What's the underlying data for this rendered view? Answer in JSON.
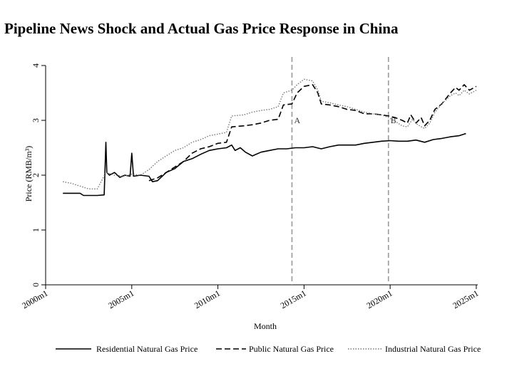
{
  "chart_data": {
    "type": "line",
    "title": "Pipeline News Shock and Actual Gas Price Response in China",
    "xlabel": "Month",
    "ylabel": "Price (RMB/m³)",
    "xlim": [
      2000.0,
      2025.5
    ],
    "ylim": [
      0,
      4
    ],
    "x_ticks": [
      {
        "label": "2000m1",
        "value": 2000
      },
      {
        "label": "2005m1",
        "value": 2005
      },
      {
        "label": "2010m1",
        "value": 2010
      },
      {
        "label": "2015m1",
        "value": 2015
      },
      {
        "label": "2020m1",
        "value": 2020
      },
      {
        "label": "2025m1",
        "value": 2025
      }
    ],
    "y_ticks": [
      0,
      1,
      2,
      3,
      4
    ],
    "grid": false,
    "legend_position": "bottom",
    "vlines": [
      {
        "x": 2014.3,
        "label": "A"
      },
      {
        "x": 2019.9,
        "label": "B"
      }
    ],
    "series": [
      {
        "name": "Residential Natural Gas Price",
        "style": "solid",
        "color": "#000000",
        "points": [
          [
            2001.0,
            1.67
          ],
          [
            2002.0,
            1.67
          ],
          [
            2002.2,
            1.63
          ],
          [
            2003.0,
            1.63
          ],
          [
            2003.4,
            1.64
          ],
          [
            2003.5,
            2.6
          ],
          [
            2003.55,
            2.05
          ],
          [
            2003.7,
            2.0
          ],
          [
            2004.0,
            2.05
          ],
          [
            2004.3,
            1.96
          ],
          [
            2004.6,
            2.0
          ],
          [
            2004.9,
            1.98
          ],
          [
            2005.0,
            2.4
          ],
          [
            2005.1,
            1.98
          ],
          [
            2005.5,
            2.0
          ],
          [
            2006.0,
            1.98
          ],
          [
            2006.2,
            1.88
          ],
          [
            2006.5,
            1.9
          ],
          [
            2007.0,
            2.05
          ],
          [
            2007.5,
            2.12
          ],
          [
            2008.0,
            2.25
          ],
          [
            2008.5,
            2.3
          ],
          [
            2009.0,
            2.38
          ],
          [
            2009.5,
            2.45
          ],
          [
            2010.0,
            2.48
          ],
          [
            2010.5,
            2.5
          ],
          [
            2010.8,
            2.55
          ],
          [
            2011.0,
            2.45
          ],
          [
            2011.3,
            2.5
          ],
          [
            2011.6,
            2.42
          ],
          [
            2012.0,
            2.35
          ],
          [
            2012.5,
            2.42
          ],
          [
            2013.0,
            2.45
          ],
          [
            2013.5,
            2.48
          ],
          [
            2014.0,
            2.48
          ],
          [
            2014.5,
            2.5
          ],
          [
            2015.0,
            2.5
          ],
          [
            2015.5,
            2.52
          ],
          [
            2016.0,
            2.48
          ],
          [
            2016.5,
            2.52
          ],
          [
            2017.0,
            2.55
          ],
          [
            2017.5,
            2.55
          ],
          [
            2018.0,
            2.55
          ],
          [
            2018.5,
            2.58
          ],
          [
            2019.0,
            2.6
          ],
          [
            2019.5,
            2.62
          ],
          [
            2020.0,
            2.63
          ],
          [
            2020.5,
            2.62
          ],
          [
            2021.0,
            2.62
          ],
          [
            2021.5,
            2.64
          ],
          [
            2022.0,
            2.6
          ],
          [
            2022.5,
            2.65
          ],
          [
            2023.0,
            2.67
          ],
          [
            2023.5,
            2.7
          ],
          [
            2024.0,
            2.72
          ],
          [
            2024.4,
            2.76
          ]
        ]
      },
      {
        "name": "Public Natural Gas Price",
        "style": "dashed",
        "color": "#000000",
        "points": [
          [
            2006.0,
            1.9
          ],
          [
            2006.5,
            1.95
          ],
          [
            2007.0,
            2.05
          ],
          [
            2007.5,
            2.15
          ],
          [
            2008.0,
            2.25
          ],
          [
            2008.5,
            2.4
          ],
          [
            2009.0,
            2.48
          ],
          [
            2009.5,
            2.52
          ],
          [
            2010.0,
            2.58
          ],
          [
            2010.5,
            2.6
          ],
          [
            2010.8,
            2.88
          ],
          [
            2011.5,
            2.9
          ],
          [
            2012.0,
            2.92
          ],
          [
            2012.5,
            2.95
          ],
          [
            2013.0,
            3.0
          ],
          [
            2013.5,
            3.02
          ],
          [
            2013.8,
            3.28
          ],
          [
            2014.3,
            3.3
          ],
          [
            2014.6,
            3.5
          ],
          [
            2015.0,
            3.62
          ],
          [
            2015.5,
            3.65
          ],
          [
            2015.8,
            3.5
          ],
          [
            2016.0,
            3.3
          ],
          [
            2016.5,
            3.28
          ],
          [
            2017.0,
            3.25
          ],
          [
            2017.5,
            3.2
          ],
          [
            2018.0,
            3.18
          ],
          [
            2018.5,
            3.12
          ],
          [
            2019.0,
            3.12
          ],
          [
            2019.5,
            3.1
          ],
          [
            2019.9,
            3.08
          ],
          [
            2020.3,
            3.05
          ],
          [
            2020.7,
            3.0
          ],
          [
            2021.0,
            2.95
          ],
          [
            2021.2,
            3.1
          ],
          [
            2021.5,
            2.95
          ],
          [
            2021.8,
            3.05
          ],
          [
            2022.0,
            2.9
          ],
          [
            2022.3,
            3.0
          ],
          [
            2022.6,
            3.2
          ],
          [
            2023.0,
            3.3
          ],
          [
            2023.5,
            3.5
          ],
          [
            2023.8,
            3.6
          ],
          [
            2024.0,
            3.55
          ],
          [
            2024.3,
            3.65
          ],
          [
            2024.6,
            3.55
          ],
          [
            2025.0,
            3.62
          ]
        ]
      },
      {
        "name": "Industrial Natural Gas Price",
        "style": "dotted",
        "color": "#777777",
        "points": [
          [
            2001.0,
            1.88
          ],
          [
            2001.5,
            1.85
          ],
          [
            2002.0,
            1.8
          ],
          [
            2002.5,
            1.75
          ],
          [
            2003.0,
            1.75
          ],
          [
            2003.5,
            2.05
          ],
          [
            2004.0,
            2.0
          ],
          [
            2004.5,
            1.98
          ],
          [
            2005.0,
            2.02
          ],
          [
            2005.5,
            2.0
          ],
          [
            2006.0,
            2.1
          ],
          [
            2006.5,
            2.25
          ],
          [
            2007.0,
            2.35
          ],
          [
            2007.5,
            2.45
          ],
          [
            2008.0,
            2.5
          ],
          [
            2008.5,
            2.6
          ],
          [
            2009.0,
            2.65
          ],
          [
            2009.5,
            2.72
          ],
          [
            2010.0,
            2.75
          ],
          [
            2010.5,
            2.78
          ],
          [
            2010.8,
            3.08
          ],
          [
            2011.5,
            3.1
          ],
          [
            2012.0,
            3.15
          ],
          [
            2012.5,
            3.18
          ],
          [
            2013.0,
            3.2
          ],
          [
            2013.5,
            3.25
          ],
          [
            2013.8,
            3.5
          ],
          [
            2014.3,
            3.55
          ],
          [
            2014.6,
            3.65
          ],
          [
            2015.0,
            3.75
          ],
          [
            2015.5,
            3.72
          ],
          [
            2015.8,
            3.55
          ],
          [
            2016.0,
            3.35
          ],
          [
            2016.5,
            3.32
          ],
          [
            2017.0,
            3.28
          ],
          [
            2017.5,
            3.25
          ],
          [
            2018.0,
            3.2
          ],
          [
            2018.5,
            3.15
          ],
          [
            2019.0,
            3.12
          ],
          [
            2019.5,
            3.1
          ],
          [
            2019.9,
            3.05
          ],
          [
            2020.3,
            2.98
          ],
          [
            2020.7,
            2.9
          ],
          [
            2021.0,
            2.88
          ],
          [
            2021.3,
            3.02
          ],
          [
            2021.6,
            2.92
          ],
          [
            2022.0,
            2.85
          ],
          [
            2022.3,
            2.95
          ],
          [
            2022.6,
            3.15
          ],
          [
            2023.0,
            3.3
          ],
          [
            2023.5,
            3.45
          ],
          [
            2023.8,
            3.5
          ],
          [
            2024.0,
            3.45
          ],
          [
            2024.3,
            3.55
          ],
          [
            2024.6,
            3.48
          ],
          [
            2025.0,
            3.55
          ]
        ]
      }
    ]
  }
}
